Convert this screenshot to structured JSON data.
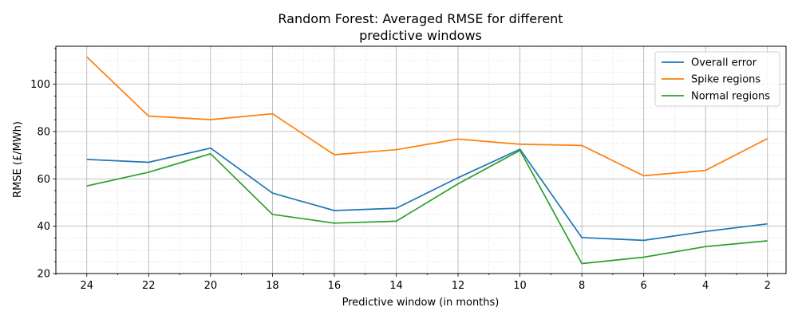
{
  "chart_data": {
    "type": "line",
    "title": [
      "Random Forest: Averaged RMSE for different",
      "predictive windows"
    ],
    "xlabel": "Predictive window (in months)",
    "ylabel": "RMSE (£/MWh)",
    "x": [
      24,
      23,
      22,
      21,
      20,
      19,
      18,
      17,
      16,
      15,
      14,
      13,
      12,
      11,
      10,
      9,
      8,
      7,
      6,
      5,
      4,
      3,
      2
    ],
    "xlim": [
      25,
      1.4
    ],
    "ylim": [
      20,
      116
    ],
    "xticks": [
      24,
      22,
      20,
      18,
      16,
      14,
      12,
      10,
      8,
      6,
      4,
      2
    ],
    "yticks": [
      20,
      40,
      60,
      80,
      100
    ],
    "grid": "major and minor",
    "legend_position": "top-right",
    "series": [
      {
        "name": "Overall error",
        "color": "#1f77b4",
        "x": [
          24,
          22,
          20,
          18,
          16,
          14,
          12,
          10,
          8,
          6,
          4,
          2
        ],
        "values": [
          68.2,
          67.0,
          73.0,
          54.0,
          46.6,
          47.6,
          60.5,
          72.5,
          35.2,
          34.0,
          37.8,
          41.0
        ]
      },
      {
        "name": "Spike regions",
        "color": "#ff7f0e",
        "x": [
          24,
          22,
          20,
          18,
          16,
          14,
          12,
          10,
          8,
          6,
          4,
          2
        ],
        "values": [
          111.5,
          86.5,
          85.0,
          87.5,
          70.2,
          72.3,
          76.8,
          74.6,
          74.1,
          61.3,
          63.6,
          77.0
        ]
      },
      {
        "name": "Normal regions",
        "color": "#2ca02c",
        "x": [
          24,
          22,
          20,
          18,
          16,
          14,
          12,
          10,
          8,
          6,
          4,
          2
        ],
        "values": [
          57.0,
          62.8,
          70.6,
          45.0,
          41.3,
          42.1,
          57.9,
          72.0,
          24.2,
          26.9,
          31.4,
          33.8
        ]
      }
    ]
  }
}
